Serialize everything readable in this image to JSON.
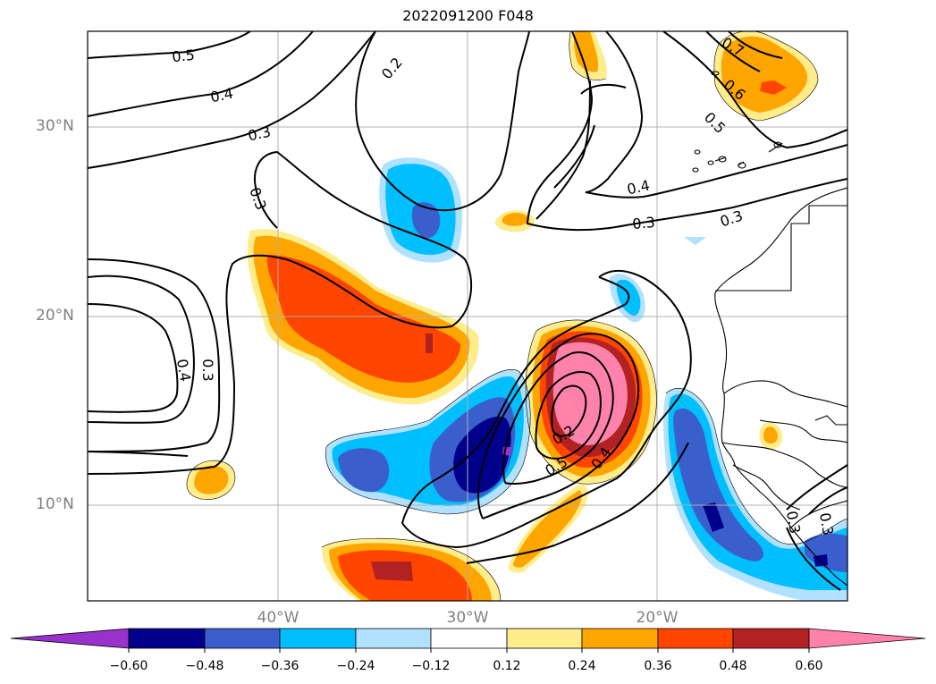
{
  "title": "2022091200 F048",
  "lat_labels": [
    "30°N",
    "20°N",
    "10°N"
  ],
  "lon_labels": [
    "40°W",
    "30°W",
    "20°W"
  ],
  "contour_labels": [
    "0.5",
    "0.4",
    "0.3",
    "0.2",
    "0.3",
    "0.3",
    "0.4",
    "0.3",
    "0.7",
    "0.6",
    "0.5",
    "0.4",
    "0.3",
    "0.2",
    "0.5",
    "0.4",
    "0.3",
    "0.3",
    "0.3"
  ],
  "colorbar": {
    "ticks": [
      "−0.60",
      "−0.48",
      "−0.36",
      "−0.24",
      "−0.12",
      "0.12",
      "0.24",
      "0.36",
      "0.48",
      "0.60"
    ],
    "colors": [
      "#9932cc",
      "#00008b",
      "#3a5fcd",
      "#00bfff",
      "#b0e2ff",
      "#ffffff",
      "#ffec8b",
      "#ffa500",
      "#ff4500",
      "#b22222",
      "#ff82ab"
    ]
  },
  "palette": {
    "neg_extreme": "#9932cc",
    "neg_strong": "#00008b",
    "neg_mid": "#3a5fcd",
    "neg_weak": "#00bfff",
    "neg_faint": "#b0e2ff",
    "pos_faint": "#ffec8b",
    "pos_weak": "#ffa500",
    "pos_mid": "#ff4500",
    "pos_strong": "#b22222",
    "pos_extreme": "#ff82ab"
  }
}
